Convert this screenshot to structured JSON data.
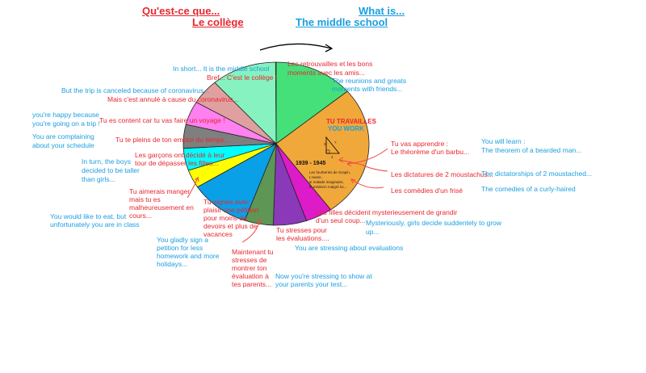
{
  "titles": {
    "fr_1": "Qu'est-ce que...",
    "fr_2": "Le collège",
    "en_1": "What is...",
    "en_2": "The middle school"
  },
  "colors": {
    "french": "#e8262e",
    "english": "#1a9fe0"
  },
  "slices": [
    {
      "color": "#45e07a",
      "share": 13.9
    },
    {
      "color": "#f0a83a",
      "share": 26.1
    },
    {
      "color": "#dd1bc8",
      "share": 4.7
    },
    {
      "color": "#8a3ab8",
      "share": 5.8
    },
    {
      "color": "#5e9655",
      "share": 5.0
    },
    {
      "color": "#0aa0e8",
      "share": 10.6
    },
    {
      "color": "#ffff00",
      "share": 3.6
    },
    {
      "color": "#00ffff",
      "share": 4.4
    },
    {
      "color": "#7f7f7f",
      "share": 4.7
    },
    {
      "color": "#ff80f0",
      "share": 4.7
    },
    {
      "color": "#e0a0a0",
      "share": 5.0
    },
    {
      "color": "#85f2bf",
      "share": 11.4
    }
  ],
  "inside": {
    "work_fr": "TU TRAVAILLES",
    "work_en": "YOU WORK",
    "years": "1939 - 1945",
    "books": [
      "Les fourberies de Scapin,",
      "L'avare,",
      "le malade imaginaire,",
      "le médecin malgré lui..."
    ],
    "tri_a": "3",
    "tri_b": "4",
    "tri_c": "?"
  },
  "labels": {
    "l1": "In short... It is the middle school",
    "l2": "Bref... C'est le collège !",
    "l3": "Les retrouvailles et les bons",
    "l4": "moments avec les amis...",
    "l5": "The reunions and greats",
    "l6": "moments with friends...",
    "l7": "But the trip is canceled because of coronavirus...",
    "l8": "Mais c'est annulé à cause du coronavirus...",
    "l9": "you're happy because",
    "l10": "you're going on a trip !",
    "l11": "Tu es content car tu vas faire un voyage !",
    "l12": "You are complaining",
    "l13": "about your schedule",
    "l14": "Tu te pleins de ton emploi du temps...",
    "l15": "Les garçons ont décidé à leur",
    "l16": "tour de dépasser les filles...",
    "l17": "In turn, the boys",
    "l18": "decided to be taller",
    "l19": "than girls...",
    "l20": "Tu aimerais manger",
    "l21": "mais tu es",
    "l22": "malheureusement en",
    "l23": "cours...",
    "l24": "You would like to eat, but",
    "l25": "unfortunately you are in class",
    "l26": "Tu signes avec",
    "l27": "plaisir une pétition",
    "l28": "pour moins de",
    "l29": "devoirs et plus de",
    "l30": "vacances",
    "l31": "You gladly sign a",
    "l32": "petition for less",
    "l33": "homework and more",
    "l34": "holidays...",
    "l35": "Maintenant tu",
    "l36": "stresses de",
    "l37": "montrer ton",
    "l38": "évaluation à",
    "l39": "tes parents...",
    "l40": "Now you're stressing to show at",
    "l41": "your parents your test...",
    "l42": "Tu stresses pour",
    "l43": "les évaluations....",
    "l44": "You are stressing about evaluations",
    "l45": "Les filles décident mysterieusement de grandir",
    "l46": "d'un seul coup...",
    "l47": "Mysteriously, girls decide suddentely to grow",
    "l48": "up...",
    "l49": "Tu vas apprendre :",
    "l50": "Le théorème d'un barbu...",
    "l51": "You will learn :",
    "l52": "The theorem of a bearded man...",
    "l53": "Les dictatures de 2 moustachus...",
    "l54": "The dictatorships of 2 moustached...",
    "l55": "Les comédies d'un frisé",
    "l56": "The comedies of a curly-haired"
  }
}
